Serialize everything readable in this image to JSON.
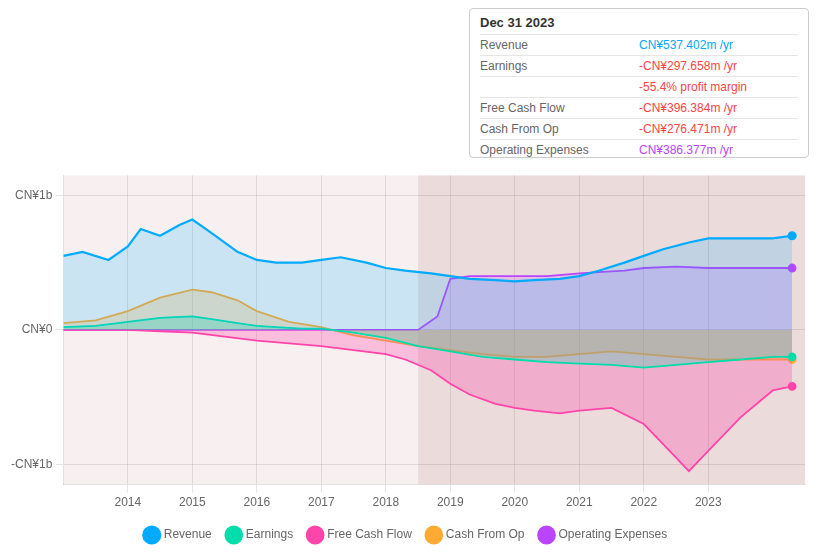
{
  "chart_data": {
    "type": "line",
    "xlim": [
      2013.0,
      2024.5
    ],
    "xticks": [
      2014,
      2015,
      2016,
      2017,
      2018,
      2019,
      2020,
      2021,
      2022,
      2023
    ],
    "ylim": [
      -1.15,
      1.15
    ],
    "yticks": [
      {
        "value": -1,
        "label": "-CN¥1b"
      },
      {
        "value": 0,
        "label": "CN¥0"
      },
      {
        "value": 1,
        "label": "CN¥1b"
      }
    ],
    "grid": true,
    "legend": "bottom",
    "shaded_regions": [
      {
        "from": 2013.0,
        "to": 2018.5,
        "color": "#8b0000"
      },
      {
        "from": 2018.5,
        "to": 2024.5,
        "color": "#7a0000"
      }
    ],
    "series": [
      {
        "name": "Revenue",
        "color": "#00aaff",
        "x": [
          2013.0,
          2013.3,
          2013.7,
          2014.0,
          2014.2,
          2014.5,
          2014.8,
          2015.0,
          2015.3,
          2015.7,
          2016.0,
          2016.3,
          2016.7,
          2017.0,
          2017.3,
          2017.7,
          2018.0,
          2018.3,
          2018.7,
          2019.0,
          2019.3,
          2019.7,
          2020.0,
          2020.3,
          2020.7,
          2021.0,
          2021.3,
          2021.7,
          2022.0,
          2022.3,
          2022.7,
          2023.0,
          2023.3,
          2023.7,
          2024.0,
          2024.3
        ],
        "values": [
          0.55,
          0.58,
          0.52,
          0.62,
          0.75,
          0.7,
          0.78,
          0.82,
          0.72,
          0.58,
          0.52,
          0.5,
          0.5,
          0.52,
          0.54,
          0.5,
          0.46,
          0.44,
          0.42,
          0.4,
          0.38,
          0.37,
          0.36,
          0.37,
          0.38,
          0.4,
          0.44,
          0.5,
          0.55,
          0.6,
          0.65,
          0.68,
          0.68,
          0.68,
          0.68,
          0.7
        ]
      },
      {
        "name": "Earnings",
        "color": "#00ddaa",
        "x": [
          2013.0,
          2013.5,
          2014.0,
          2014.5,
          2015.0,
          2015.3,
          2015.7,
          2016.0,
          2016.3,
          2016.7,
          2017.0,
          2017.5,
          2018.0,
          2018.5,
          2019.0,
          2019.5,
          2020.0,
          2020.5,
          2021.0,
          2021.5,
          2022.0,
          2022.5,
          2023.0,
          2023.5,
          2024.0,
          2024.3
        ],
        "values": [
          0.02,
          0.03,
          0.06,
          0.09,
          0.1,
          0.08,
          0.05,
          0.03,
          0.02,
          0.01,
          0.01,
          -0.02,
          -0.06,
          -0.12,
          -0.16,
          -0.2,
          -0.22,
          -0.24,
          -0.25,
          -0.26,
          -0.28,
          -0.26,
          -0.24,
          -0.22,
          -0.2,
          -0.2
        ]
      },
      {
        "name": "Free Cash Flow",
        "color": "#ff44aa",
        "x": [
          2013.0,
          2013.5,
          2014.0,
          2014.5,
          2015.0,
          2015.5,
          2016.0,
          2016.5,
          2017.0,
          2017.5,
          2018.0,
          2018.3,
          2018.7,
          2019.0,
          2019.3,
          2019.7,
          2020.0,
          2020.3,
          2020.7,
          2021.0,
          2021.5,
          2022.0,
          2022.3,
          2022.7,
          2023.0,
          2023.5,
          2024.0,
          2024.3
        ],
        "values": [
          0.0,
          0.0,
          0.0,
          -0.01,
          -0.02,
          -0.05,
          -0.08,
          -0.1,
          -0.12,
          -0.15,
          -0.18,
          -0.22,
          -0.3,
          -0.4,
          -0.48,
          -0.55,
          -0.58,
          -0.6,
          -0.62,
          -0.6,
          -0.58,
          -0.7,
          -0.85,
          -1.05,
          -0.9,
          -0.65,
          -0.45,
          -0.42
        ]
      },
      {
        "name": "Cash From Op",
        "color": "#ffaa33",
        "x": [
          2013.0,
          2013.5,
          2014.0,
          2014.5,
          2015.0,
          2015.3,
          2015.7,
          2016.0,
          2016.5,
          2017.0,
          2017.5,
          2018.0,
          2018.5,
          2019.0,
          2019.5,
          2020.0,
          2020.5,
          2021.0,
          2021.5,
          2022.0,
          2022.5,
          2023.0,
          2023.5,
          2024.0,
          2024.3
        ],
        "values": [
          0.05,
          0.07,
          0.14,
          0.24,
          0.3,
          0.28,
          0.22,
          0.14,
          0.06,
          0.02,
          -0.04,
          -0.08,
          -0.12,
          -0.15,
          -0.18,
          -0.2,
          -0.2,
          -0.18,
          -0.16,
          -0.18,
          -0.2,
          -0.22,
          -0.22,
          -0.22,
          -0.22
        ]
      },
      {
        "name": "Operating Expenses",
        "color": "#bb44ff",
        "x": [
          2013.0,
          2013.5,
          2014.0,
          2014.5,
          2015.0,
          2015.5,
          2016.0,
          2016.5,
          2017.0,
          2017.5,
          2018.0,
          2018.5,
          2018.8,
          2019.0,
          2019.3,
          2019.7,
          2020.0,
          2020.5,
          2021.0,
          2021.3,
          2021.7,
          2022.0,
          2022.5,
          2023.0,
          2023.5,
          2024.0,
          2024.3
        ],
        "values": [
          0.0,
          0.0,
          0.0,
          0.0,
          0.0,
          0.0,
          0.0,
          0.0,
          0.0,
          0.0,
          0.0,
          0.0,
          0.1,
          0.38,
          0.4,
          0.4,
          0.4,
          0.4,
          0.42,
          0.43,
          0.44,
          0.46,
          0.47,
          0.46,
          0.46,
          0.46,
          0.46
        ]
      }
    ],
    "annotations": {
      "title": "Dec 31 2023",
      "rows": [
        {
          "label": "Revenue",
          "value": "CN¥537.402m /yr",
          "color": "#00aaff"
        },
        {
          "label": "Earnings",
          "value": "-CN¥297.658m /yr",
          "color": "#ff4444"
        },
        {
          "value": "-55.4% profit margin",
          "color": "#ff4444"
        },
        {
          "label": "Free Cash Flow",
          "value": "-CN¥396.384m /yr",
          "color": "#ff4444"
        },
        {
          "label": "Cash From Op",
          "value": "-CN¥276.471m /yr",
          "color": "#ff4444"
        },
        {
          "label": "Operating Expenses",
          "value": "CN¥386.377m /yr",
          "color": "#bb44ff"
        }
      ]
    }
  }
}
